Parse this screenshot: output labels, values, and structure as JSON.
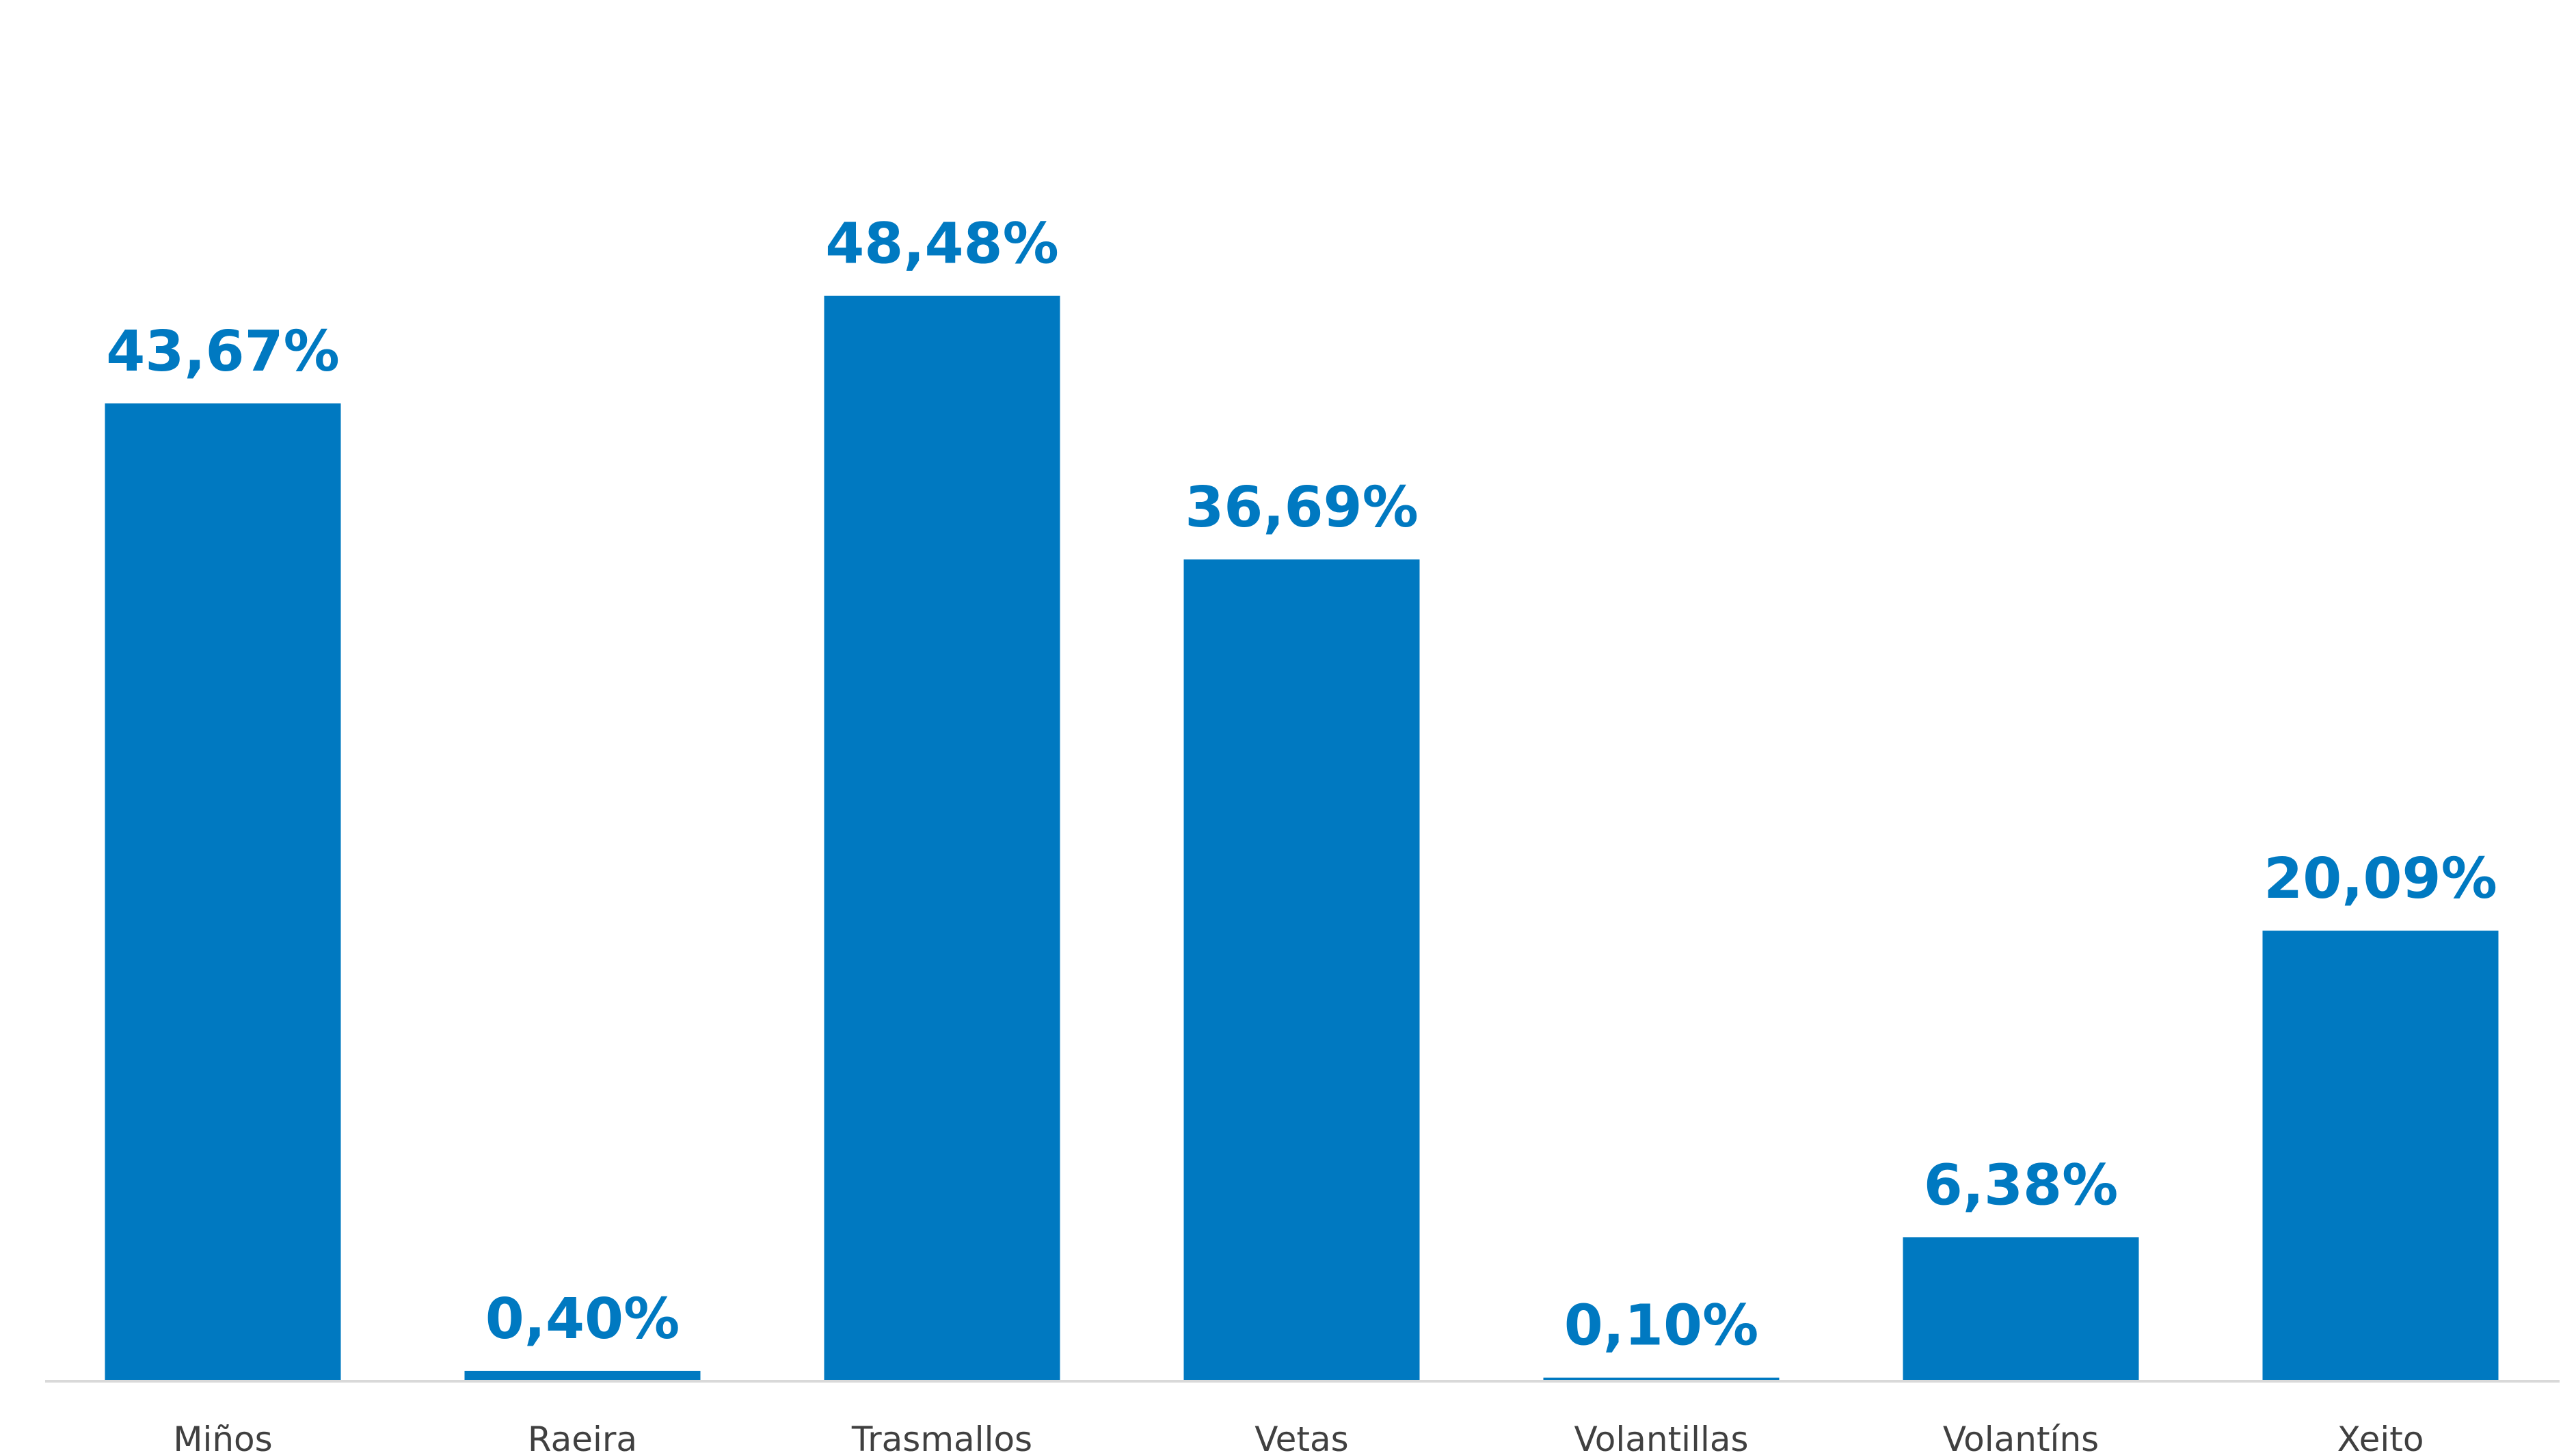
{
  "chart_data": {
    "type": "bar",
    "categories": [
      "Miños",
      "Raeira",
      "Trasmallos",
      "Vetas",
      "Volantillas",
      "Volantíns",
      "Xeito"
    ],
    "values": [
      43.67,
      0.4,
      48.48,
      36.69,
      0.1,
      6.38,
      20.09
    ],
    "data_labels": [
      "43,67%",
      "0,40%",
      "48,48%",
      "36,69%",
      "0,10%",
      "6,38%",
      "20,09%"
    ],
    "title": "",
    "xlabel": "",
    "ylabel": "",
    "y_axis_visible": false,
    "grid": false,
    "legend": "none",
    "colors": {
      "bar": "#0079C1",
      "label": "#0079C1",
      "axis": "#D9D9D9",
      "category_text": "#404040"
    }
  }
}
